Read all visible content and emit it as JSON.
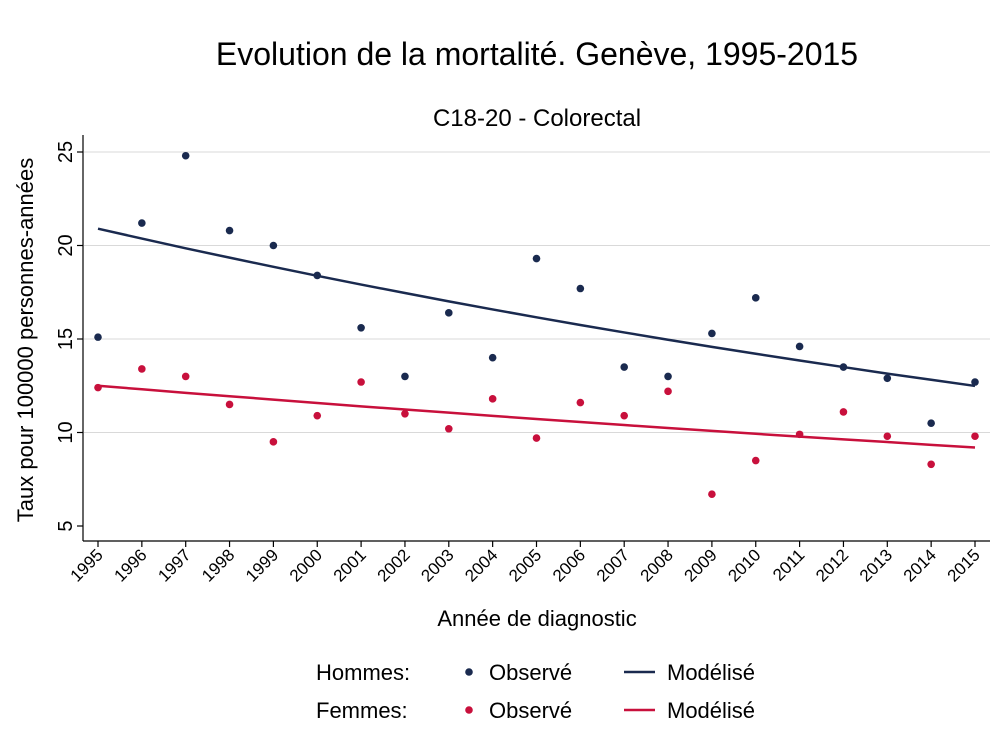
{
  "chart_data": {
    "type": "scatter",
    "title": "Evolution de la mortalité. Genève, 1995-2015",
    "subtitle": "C18-20 - Colorectal",
    "xlabel": "Année de diagnostic",
    "ylabel": "Taux pour 100000 personnes-années",
    "xlim": [
      1995,
      2015
    ],
    "ylim": [
      5,
      25
    ],
    "yticks": [
      5,
      10,
      15,
      20,
      25
    ],
    "x": [
      1995,
      1996,
      1997,
      1998,
      1999,
      2000,
      2001,
      2002,
      2003,
      2004,
      2005,
      2006,
      2007,
      2008,
      2009,
      2010,
      2011,
      2012,
      2013,
      2014,
      2015
    ],
    "grid": true,
    "legend_placement": "bottom",
    "series": [
      {
        "name": "Hommes: Observé",
        "kind": "scatter",
        "color": "#1a2a4f",
        "values": [
          15.1,
          21.2,
          24.8,
          20.8,
          20.0,
          18.4,
          15.6,
          13.0,
          16.4,
          14.0,
          19.3,
          17.7,
          13.5,
          13.0,
          15.3,
          17.2,
          14.6,
          13.5,
          12.9,
          10.5,
          12.7
        ]
      },
      {
        "name": "Hommes: Modélisé",
        "kind": "line",
        "color": "#1a2a4f",
        "values": [
          20.9,
          20.37,
          19.85,
          19.35,
          18.86,
          18.38,
          17.91,
          17.46,
          17.01,
          16.58,
          16.16,
          15.75,
          15.35,
          14.96,
          14.58,
          14.21,
          13.85,
          13.5,
          13.15,
          12.82,
          12.49
        ]
      },
      {
        "name": "Femmes: Observé",
        "kind": "scatter",
        "color": "#c8103c",
        "values": [
          12.4,
          13.4,
          13.0,
          11.5,
          9.5,
          10.9,
          12.7,
          11.0,
          10.2,
          11.8,
          9.7,
          11.6,
          10.9,
          12.2,
          6.7,
          8.5,
          9.9,
          11.1,
          9.8,
          8.3,
          9.8
        ]
      },
      {
        "name": "Femmes: Modélisé",
        "kind": "line",
        "color": "#c8103c",
        "values": [
          12.5,
          12.31,
          12.12,
          11.94,
          11.76,
          11.58,
          11.4,
          11.23,
          11.06,
          10.89,
          10.72,
          10.56,
          10.4,
          10.24,
          10.09,
          9.93,
          9.78,
          9.63,
          9.49,
          9.34,
          9.2
        ]
      }
    ],
    "legend": {
      "rows": [
        {
          "group": "Hommes:",
          "observed": "Observé",
          "modeled": "Modélisé",
          "color": "#1a2a4f"
        },
        {
          "group": "Femmes:",
          "observed": "Observé",
          "modeled": "Modélisé",
          "color": "#c8103c"
        }
      ]
    }
  }
}
